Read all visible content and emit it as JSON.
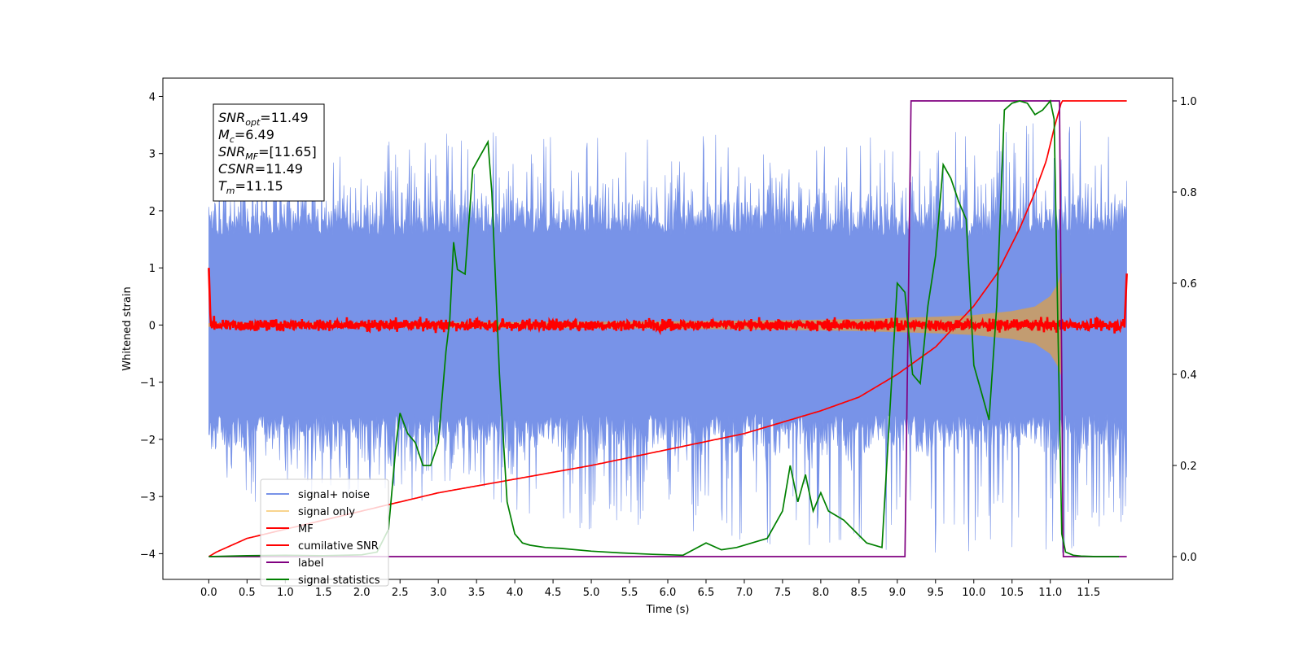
{
  "chart_data": {
    "type": "line",
    "title": "",
    "xlabel": "Time (s)",
    "ylabel": "Whitened strain",
    "ylabel_right": "",
    "xlim": [
      -0.6,
      12.6
    ],
    "ylim": [
      -4.45,
      4.32
    ],
    "ylim_right": [
      -0.05,
      1.05
    ],
    "x_ticks": [
      0.0,
      0.5,
      1.0,
      1.5,
      2.0,
      2.5,
      3.0,
      3.5,
      4.0,
      4.5,
      5.0,
      5.5,
      6.0,
      6.5,
      7.0,
      7.5,
      8.0,
      8.5,
      9.0,
      9.5,
      10.0,
      10.5,
      11.0,
      11.5
    ],
    "x_tick_labels": [
      "0.0",
      "0.5",
      "1.0",
      "1.5",
      "2.0",
      "2.5",
      "3.0",
      "3.5",
      "4.0",
      "4.5",
      "5.0",
      "5.5",
      "6.0",
      "6.5",
      "7.0",
      "7.5",
      "8.0",
      "8.5",
      "9.0",
      "9.5",
      "10.0",
      "10.5",
      "11.0",
      "11.5"
    ],
    "y_ticks": [
      -4,
      -3,
      -2,
      -1,
      0,
      1,
      2,
      3,
      4
    ],
    "y_tick_labels": [
      "−4",
      "−3",
      "−2",
      "−1",
      "0",
      "1",
      "2",
      "3",
      "4"
    ],
    "y_right_ticks": [
      0.0,
      0.2,
      0.4,
      0.6,
      0.8,
      1.0
    ],
    "y_right_tick_labels": [
      "0.0",
      "0.2",
      "0.4",
      "0.6",
      "0.8",
      "1.0"
    ],
    "grid": false,
    "legend_position": "lower-left",
    "legend": [
      {
        "label": "signal+ noise",
        "color": "#7893e8"
      },
      {
        "label": "signal only",
        "color": "#f8d48e"
      },
      {
        "label": "MF",
        "color": "#ff0000"
      },
      {
        "label": "cumilative SNR",
        "color": "#ff0000"
      },
      {
        "label": "label",
        "color": "#800080"
      },
      {
        "label": "signal statistics",
        "color": "#008000"
      }
    ],
    "annotation": [
      {
        "name": "SNR",
        "sub": "opt",
        "value": "=11.49"
      },
      {
        "name": "M",
        "sub": "c",
        "value": "=6.49"
      },
      {
        "name": "SNR",
        "sub": "MF",
        "value": "=[11.65]"
      },
      {
        "name": "CSNR",
        "sub": "",
        "value": "=11.49"
      },
      {
        "name": "T",
        "sub": "m",
        "value": "=11.15"
      }
    ],
    "noise_envelope": {
      "t": [
        0.0,
        1.0,
        2.0,
        3.0,
        4.0,
        5.0,
        6.0,
        7.0,
        8.0,
        9.0,
        10.0,
        11.0,
        12.0
      ],
      "upper_peak": [
        3.0,
        3.2,
        3.2,
        3.4,
        3.4,
        3.3,
        3.3,
        3.4,
        3.3,
        3.3,
        3.6,
        3.6,
        3.6
      ],
      "lower_peak": [
        -3.4,
        -3.0,
        -3.0,
        -3.2,
        -3.4,
        -3.6,
        -3.6,
        -3.8,
        -4.0,
        -4.0,
        -4.0,
        -4.1,
        -3.5
      ]
    },
    "signal_envelope": {
      "t": [
        0.0,
        3.0,
        6.0,
        7.5,
        8.5,
        9.5,
        10.0,
        10.5,
        10.8,
        11.0,
        11.1,
        11.15
      ],
      "amp": [
        0.03,
        0.04,
        0.06,
        0.08,
        0.1,
        0.14,
        0.17,
        0.24,
        0.32,
        0.5,
        0.72,
        0.9
      ]
    },
    "mf_noise_amp": 0.12,
    "cumulative_snr": {
      "t": [
        0.0,
        0.1,
        0.5,
        1.0,
        2.0,
        3.0,
        4.0,
        5.0,
        6.0,
        7.0,
        8.0,
        8.5,
        9.0,
        9.5,
        10.0,
        10.3,
        10.6,
        10.8,
        10.95,
        11.05,
        11.15,
        11.2,
        12.0
      ],
      "value": [
        0.0,
        0.01,
        0.04,
        0.06,
        0.1,
        0.14,
        0.17,
        0.2,
        0.235,
        0.27,
        0.32,
        0.35,
        0.4,
        0.46,
        0.55,
        0.62,
        0.72,
        0.8,
        0.87,
        0.94,
        1.0,
        1.0,
        1.0
      ]
    },
    "label_series": {
      "t": [
        0.0,
        9.1,
        9.18,
        11.12,
        11.17,
        12.0
      ],
      "value": [
        0.0,
        0.0,
        1.0,
        1.0,
        0.0,
        0.0
      ]
    },
    "signal_statistics": {
      "t": [
        0.0,
        0.5,
        1.0,
        1.5,
        2.0,
        2.2,
        2.35,
        2.45,
        2.5,
        2.6,
        2.7,
        2.8,
        2.9,
        3.0,
        3.1,
        3.15,
        3.2,
        3.25,
        3.35,
        3.45,
        3.55,
        3.65,
        3.7,
        3.8,
        3.9,
        4.0,
        4.1,
        4.2,
        4.4,
        4.6,
        5.0,
        5.4,
        5.8,
        6.2,
        6.5,
        6.7,
        6.9,
        7.1,
        7.3,
        7.5,
        7.6,
        7.7,
        7.8,
        7.9,
        8.0,
        8.1,
        8.3,
        8.6,
        8.8,
        9.0,
        9.1,
        9.2,
        9.3,
        9.4,
        9.5,
        9.6,
        9.7,
        9.8,
        9.9,
        10.0,
        10.1,
        10.2,
        10.3,
        10.4,
        10.5,
        10.6,
        10.7,
        10.8,
        10.9,
        11.0,
        11.05,
        11.1,
        11.15,
        11.2,
        11.3,
        11.4,
        11.6,
        11.9
      ],
      "value": [
        0.0,
        0.002,
        0.003,
        0.002,
        0.004,
        0.01,
        0.06,
        0.25,
        0.315,
        0.27,
        0.25,
        0.2,
        0.2,
        0.25,
        0.45,
        0.52,
        0.69,
        0.63,
        0.62,
        0.85,
        0.88,
        0.91,
        0.8,
        0.4,
        0.12,
        0.05,
        0.03,
        0.025,
        0.02,
        0.018,
        0.012,
        0.008,
        0.005,
        0.003,
        0.03,
        0.015,
        0.02,
        0.03,
        0.04,
        0.1,
        0.2,
        0.12,
        0.18,
        0.1,
        0.14,
        0.1,
        0.08,
        0.03,
        0.02,
        0.6,
        0.58,
        0.4,
        0.38,
        0.55,
        0.66,
        0.86,
        0.83,
        0.78,
        0.74,
        0.42,
        0.36,
        0.3,
        0.55,
        0.98,
        0.995,
        1.0,
        0.995,
        0.97,
        0.98,
        1.0,
        0.96,
        0.5,
        0.05,
        0.01,
        0.003,
        0.001,
        0.0,
        0.0
      ]
    }
  }
}
